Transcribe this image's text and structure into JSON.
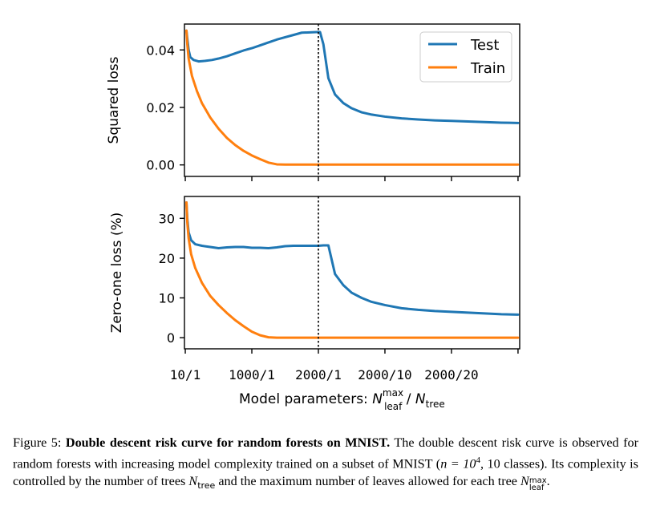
{
  "chart_data": [
    {
      "type": "line",
      "ylabel": "Squared loss",
      "ylim": [
        -0.004,
        0.049
      ],
      "yticks": [
        "0.00",
        "0.02",
        "0.04"
      ],
      "ytick_values": [
        0.0,
        0.02,
        0.04
      ],
      "grid": false,
      "legend": {
        "placement": "top-right",
        "entries": [
          "Test",
          "Train"
        ]
      },
      "series": [
        {
          "name": "Test",
          "color": "#1f77b4",
          "x": [
            0.07,
            0.12,
            0.2,
            0.3,
            0.5,
            0.8,
            1.2,
            1.6,
            2.0,
            2.5,
            3.0,
            3.5,
            4.0,
            4.5,
            5.0,
            5.5,
            6.0,
            6.5,
            7.0,
            7.5,
            7.9,
            8.0,
            8.1,
            8.3,
            8.6,
            9.0,
            9.5,
            10.0,
            10.6,
            11.2,
            12.0,
            13.0,
            14.0,
            15.0,
            16.0,
            17.0,
            18.0,
            19.0,
            20.0
          ],
          "y": [
            0.0467,
            0.044,
            0.04,
            0.0375,
            0.0365,
            0.036,
            0.0362,
            0.0365,
            0.037,
            0.0378,
            0.0388,
            0.0398,
            0.0406,
            0.0416,
            0.0426,
            0.0436,
            0.0444,
            0.0452,
            0.046,
            0.0461,
            0.0462,
            0.0462,
            0.0462,
            0.042,
            0.0302,
            0.0245,
            0.0215,
            0.0197,
            0.0183,
            0.0175,
            0.0168,
            0.0162,
            0.0158,
            0.0155,
            0.0153,
            0.0151,
            0.0149,
            0.0147,
            0.0146
          ]
        },
        {
          "name": "Train",
          "color": "#ff7f0e",
          "x": [
            0.07,
            0.12,
            0.2,
            0.4,
            0.7,
            1.0,
            1.5,
            2.0,
            2.5,
            3.0,
            3.5,
            4.0,
            4.5,
            5.0,
            5.5,
            6.0,
            6.5,
            7.0,
            7.5,
            8.0,
            9.0,
            10.0,
            12.0,
            14.0,
            16.0,
            18.0,
            20.0
          ],
          "y": [
            0.0467,
            0.042,
            0.037,
            0.031,
            0.0257,
            0.0215,
            0.0165,
            0.0126,
            0.0094,
            0.0069,
            0.0049,
            0.0033,
            0.002,
            0.0008,
            0.0002,
            0.0001,
            0.0001,
            0.0001,
            0.0001,
            0.0001,
            0.0001,
            0.0001,
            0.0001,
            0.0001,
            0.0001,
            0.0001,
            0.0001
          ]
        }
      ],
      "vline": 8.0
    },
    {
      "type": "line",
      "ylabel": "Zero-one loss (%)",
      "ylim": [
        -2.8,
        35.5
      ],
      "yticks": [
        "0",
        "10",
        "20",
        "30"
      ],
      "ytick_values": [
        0,
        10,
        20,
        30
      ],
      "grid": false,
      "series": [
        {
          "name": "Test",
          "color": "#1f77b4",
          "x": [
            0.07,
            0.12,
            0.2,
            0.35,
            0.6,
            1.0,
            1.5,
            2.0,
            2.5,
            3.0,
            3.5,
            4.0,
            4.5,
            5.0,
            5.5,
            6.0,
            6.5,
            7.0,
            7.5,
            8.0,
            8.3,
            8.6,
            9.0,
            9.5,
            10.0,
            10.6,
            11.2,
            12.0,
            13.0,
            14.0,
            15.0,
            16.0,
            17.0,
            18.0,
            19.0,
            20.0
          ],
          "y": [
            34.0,
            30.0,
            26.5,
            24.5,
            23.5,
            23.1,
            22.8,
            22.5,
            22.7,
            22.8,
            22.8,
            22.6,
            22.6,
            22.5,
            22.7,
            23.0,
            23.1,
            23.1,
            23.1,
            23.1,
            23.2,
            23.2,
            16.0,
            13.2,
            11.3,
            10.0,
            9.0,
            8.2,
            7.4,
            7.0,
            6.7,
            6.5,
            6.3,
            6.1,
            5.9,
            5.8
          ]
        },
        {
          "name": "Train",
          "color": "#ff7f0e",
          "x": [
            0.07,
            0.12,
            0.2,
            0.35,
            0.6,
            1.0,
            1.5,
            2.0,
            2.5,
            3.0,
            3.5,
            4.0,
            4.5,
            5.0,
            5.5,
            6.0,
            6.5,
            7.0,
            7.5,
            8.0,
            9.0,
            10.0,
            12.0,
            14.0,
            16.0,
            18.0,
            20.0
          ],
          "y": [
            34.0,
            29.0,
            25.0,
            21.0,
            17.5,
            13.8,
            10.5,
            8.2,
            6.2,
            4.4,
            2.9,
            1.5,
            0.6,
            0.1,
            0.0,
            0.0,
            0.0,
            0.0,
            0.0,
            0.0,
            0.0,
            0.0,
            0.0,
            0.0,
            0.0,
            0.0,
            0.0
          ]
        }
      ],
      "vline": 8.0
    }
  ],
  "x_axis": {
    "xlim": [
      -0.05,
      20.1
    ],
    "tick_values": [
      0,
      4,
      8,
      12,
      16,
      20
    ],
    "tick_labels": [
      "10/1",
      "1000/1",
      "2000/1",
      "2000/10",
      "2000/20"
    ],
    "tick_label_positions": [
      0,
      4,
      8,
      12,
      16
    ],
    "label_prefix": "Model parameters: ",
    "label_n1": "N",
    "label_n1_sup": "max",
    "label_n1_sub": "leaf",
    "label_sep": " / ",
    "label_n2": "N",
    "label_n2_sub": "tree"
  },
  "caption": {
    "fig_label": "Figure 5:",
    "bold_title": "Double descent risk curve for random forests on MNIST.",
    "text1": "The double descent risk curve is observed for random forests with increasing model complexity trained on a subset of MNIST (",
    "math1": "n = 10",
    "math1_sup": "4",
    "text2": ", 10 classes).  Its complexity is controlled by the number of trees ",
    "ntree": "N",
    "ntree_sub": "tree",
    "text3": " and the maximum number of leaves allowed for each tree ",
    "nleaf": "N",
    "nleaf_sup": "max",
    "nleaf_sub": "leaf",
    "text4": "."
  }
}
